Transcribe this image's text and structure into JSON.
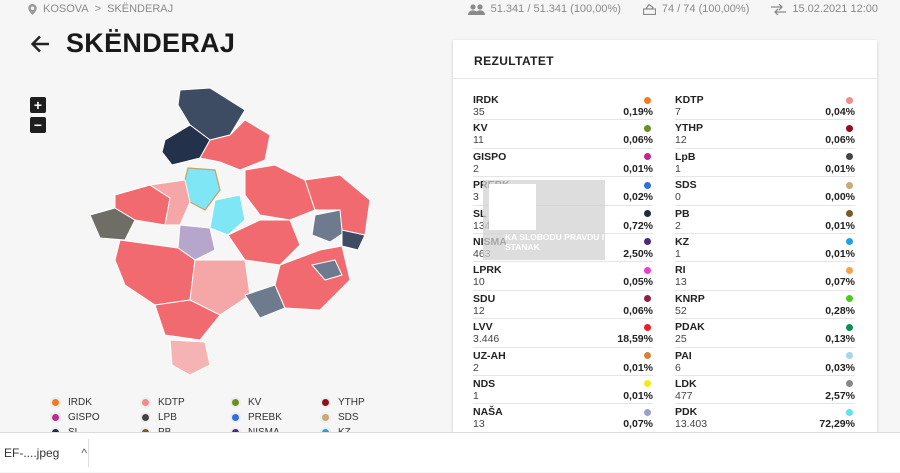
{
  "breadcrumb": {
    "region": "KOSOVA",
    "separator": ">",
    "municipality": "SKËNDERAJ"
  },
  "stats": {
    "voters": "51.341 / 51.341 (100,00%)",
    "stations": "74 / 74 (100,00%)",
    "updated": "15.02.2021 12:00"
  },
  "page": {
    "title": "SKËNDERAJ"
  },
  "zoom": {
    "in": "+",
    "out": "−"
  },
  "results": {
    "title": "REZULTATET",
    "left": [
      {
        "name": "IRDK",
        "votes": "35",
        "pct": "0,19%",
        "color": "#f47a1f"
      },
      {
        "name": "KV",
        "votes": "11",
        "pct": "0,06%",
        "color": "#6b8e23"
      },
      {
        "name": "GISPO",
        "votes": "2",
        "pct": "0,01%",
        "color": "#c0288f"
      },
      {
        "name": "PREBK",
        "votes": "3",
        "pct": "0,02%",
        "color": "#2f6fe0"
      },
      {
        "name": "SL",
        "votes": "134",
        "pct": "0,72%",
        "color": "#1e2a44"
      },
      {
        "name": "NISMA",
        "votes": "463",
        "pct": "2,50%",
        "color": "#4b2a7b"
      },
      {
        "name": "LPRK",
        "votes": "10",
        "pct": "0,05%",
        "color": "#e83fd0"
      },
      {
        "name": "SDU",
        "votes": "12",
        "pct": "0,06%",
        "color": "#8a2247"
      },
      {
        "name": "LVV",
        "votes": "3.446",
        "pct": "18,59%",
        "color": "#e8202a"
      },
      {
        "name": "UZ-AH",
        "votes": "2",
        "pct": "0,01%",
        "color": "#d2843a"
      },
      {
        "name": "NDS",
        "votes": "1",
        "pct": "0,01%",
        "color": "#f5e81a"
      },
      {
        "name": "NAŠA",
        "votes": "13",
        "pct": "0,07%",
        "color": "#9aa0c8"
      }
    ],
    "right": [
      {
        "name": "KDTP",
        "votes": "7",
        "pct": "0,04%",
        "color": "#f28b8b"
      },
      {
        "name": "YTHP",
        "votes": "12",
        "pct": "0,06%",
        "color": "#8b1020"
      },
      {
        "name": "LpB",
        "votes": "1",
        "pct": "0,01%",
        "color": "#444444"
      },
      {
        "name": "SDS",
        "votes": "0",
        "pct": "0,00%",
        "color": "#c9a87a"
      },
      {
        "name": "PB",
        "votes": "2",
        "pct": "0,01%",
        "color": "#7b5a2a"
      },
      {
        "name": "KZ",
        "votes": "1",
        "pct": "0,01%",
        "color": "#1fa3e0"
      },
      {
        "name": "RI",
        "votes": "13",
        "pct": "0,07%",
        "color": "#f5a24a"
      },
      {
        "name": "KNRP",
        "votes": "52",
        "pct": "0,28%",
        "color": "#4cc81e"
      },
      {
        "name": "PDAK",
        "votes": "25",
        "pct": "0,13%",
        "color": "#0f8f4f"
      },
      {
        "name": "PAI",
        "votes": "6",
        "pct": "0,03%",
        "color": "#a8d4f0"
      },
      {
        "name": "LDK",
        "votes": "477",
        "pct": "2,57%",
        "color": "#888888"
      },
      {
        "name": "PDK",
        "votes": "13.403",
        "pct": "72,29%",
        "color": "#5fe0f0"
      }
    ]
  },
  "overlay": {
    "line1": "KA SLOBODU PRAVDU I",
    "line2": "STANAK"
  },
  "legend": [
    [
      {
        "name": "IRDK",
        "color": "#f47a1f"
      },
      {
        "name": "KDTP",
        "color": "#f28b8b"
      },
      {
        "name": "KV",
        "color": "#6b8e23"
      },
      {
        "name": "YTHP",
        "color": "#8b1020"
      }
    ],
    [
      {
        "name": "GISPO",
        "color": "#c0288f"
      },
      {
        "name": "LPB",
        "color": "#444444"
      },
      {
        "name": "PREBK",
        "color": "#2f6fe0"
      },
      {
        "name": "SDS",
        "color": "#c9a87a"
      }
    ],
    [
      {
        "name": "SL",
        "color": "#1e2a44"
      },
      {
        "name": "PB",
        "color": "#7b5a2a"
      },
      {
        "name": "NISMA",
        "color": "#4b2a7b"
      },
      {
        "name": "KZ",
        "color": "#1fa3e0"
      }
    ]
  ],
  "download": {
    "filename": "EF-....jpeg",
    "chevron": "^"
  }
}
